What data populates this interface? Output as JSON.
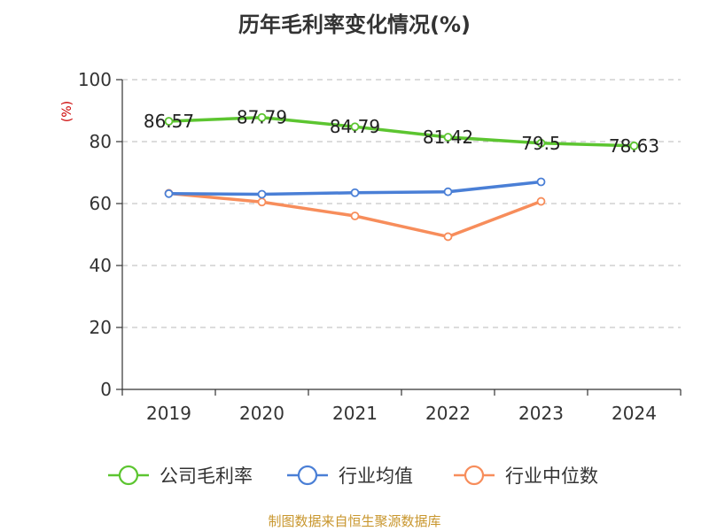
{
  "chart_data": {
    "type": "line",
    "title": "历年毛利率变化情况(%)",
    "ylabel": "(%)",
    "xlabel": "",
    "categories": [
      "2019",
      "2020",
      "2021",
      "2022",
      "2023",
      "2024"
    ],
    "ylim": [
      0,
      100
    ],
    "yticks": [
      0,
      20,
      40,
      60,
      80,
      100
    ],
    "grid": true,
    "legend_position": "bottom",
    "series": [
      {
        "name": "公司毛利率",
        "color": "#5cc530",
        "labeled": true,
        "values": [
          86.57,
          87.79,
          84.79,
          81.42,
          79.5,
          78.63
        ],
        "labels": [
          "86.57",
          "87.79",
          "84.79",
          "81.42",
          "79.5",
          "78.63"
        ]
      },
      {
        "name": "行业均值",
        "color": "#4a7fd6",
        "labeled": false,
        "values": [
          63.2,
          63.0,
          63.5,
          63.8,
          67.0,
          null
        ]
      },
      {
        "name": "行业中位数",
        "color": "#f78d5b",
        "labeled": false,
        "values": [
          63.3,
          60.5,
          56.0,
          49.3,
          60.7,
          null
        ]
      }
    ]
  },
  "source": "制图数据来自恒生聚源数据库"
}
